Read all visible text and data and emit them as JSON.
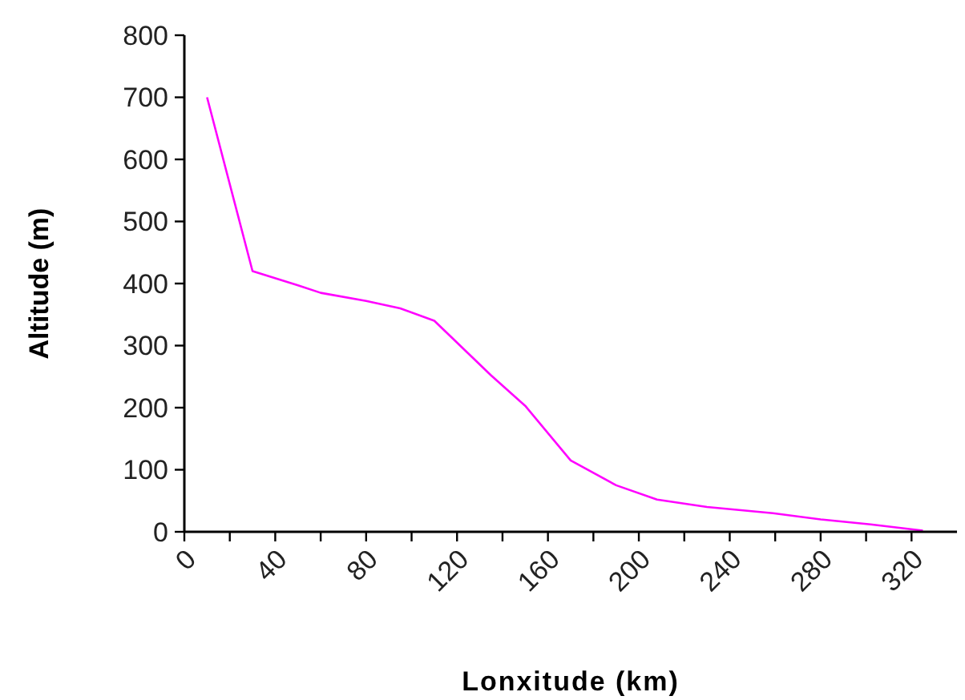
{
  "chart_data": {
    "type": "line",
    "xlabel": "Lonxitude (km)",
    "ylabel": "Altitude (m)",
    "xlim": [
      0,
      340
    ],
    "ylim": [
      0,
      800
    ],
    "xticks": [
      0,
      {
        "value": 20,
        "label": null
      },
      40,
      {
        "value": 60,
        "label": null
      },
      80,
      {
        "value": 100,
        "label": null
      },
      120,
      {
        "value": 140,
        "label": null
      },
      160,
      {
        "value": 180,
        "label": null
      },
      200,
      {
        "value": 220,
        "label": null
      },
      240,
      {
        "value": 260,
        "label": null
      },
      280,
      {
        "value": 300,
        "label": null
      },
      320
    ],
    "yticks": [
      0,
      100,
      200,
      300,
      400,
      500,
      600,
      700,
      800
    ],
    "grid": false,
    "marker": "none",
    "line_style": "solid",
    "series": [
      {
        "color": "#ff00ff",
        "x": [
          10,
          30,
          50,
          60,
          80,
          95,
          110,
          135,
          150,
          170,
          190,
          208,
          230,
          259,
          280,
          302,
          325
        ],
        "values": [
          700,
          420,
          397,
          385,
          372,
          360,
          340,
          252,
          203,
          115,
          75,
          52,
          40,
          30,
          20,
          12,
          2
        ]
      }
    ]
  }
}
